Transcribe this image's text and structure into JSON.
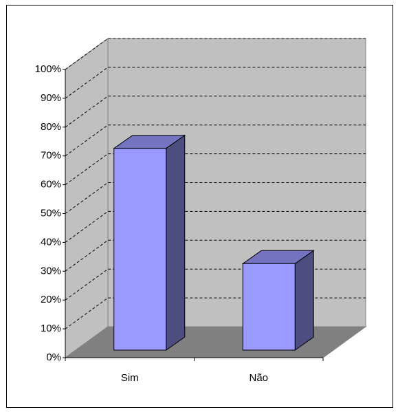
{
  "chart_data": {
    "type": "bar3d",
    "categories": [
      "Sim",
      "Não"
    ],
    "values": [
      70,
      30
    ],
    "color": "#9999ff",
    "ylim": [
      0,
      100
    ],
    "yticks": [
      {
        "value": 0,
        "label": "0%"
      },
      {
        "value": 10,
        "label": "10%"
      },
      {
        "value": 20,
        "label": "20%"
      },
      {
        "value": 30,
        "label": "30%"
      },
      {
        "value": 40,
        "label": "40%"
      },
      {
        "value": 50,
        "label": "50%"
      },
      {
        "value": 60,
        "label": "60%"
      },
      {
        "value": 70,
        "label": "70%"
      },
      {
        "value": 80,
        "label": "80%"
      },
      {
        "value": 90,
        "label": "90%"
      },
      {
        "value": 100,
        "label": "100%"
      }
    ],
    "grid": true
  }
}
